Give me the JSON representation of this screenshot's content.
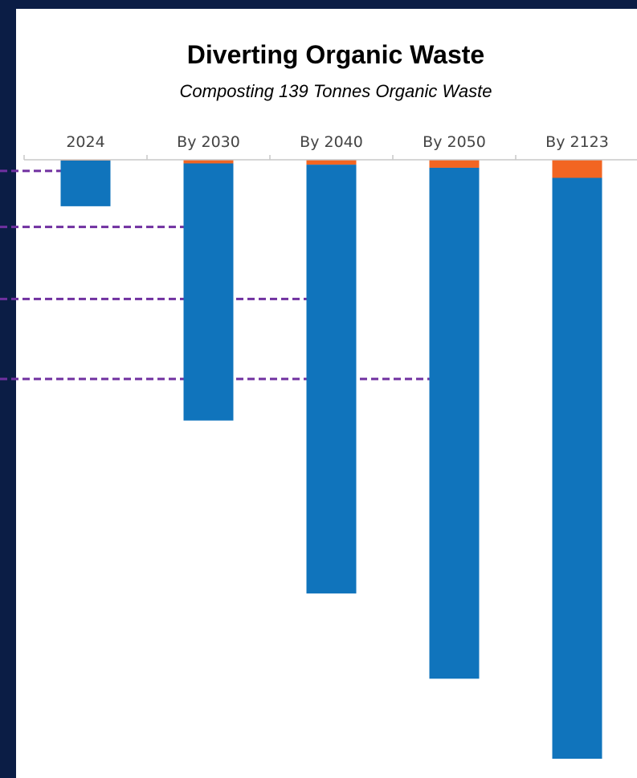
{
  "chart_data": {
    "type": "bar",
    "title": "Diverting Organic Waste",
    "subtitle": "Composting 139 Tonnes Organic Waste",
    "xlabel": "",
    "ylabel": "",
    "orientation": "downward",
    "categories": [
      "2024",
      "By 2030",
      "By 2040",
      "By 2050",
      "By 2123"
    ],
    "series": [
      {
        "values": [
          0.3,
          1.4,
          1.9,
          3.1,
          7.0
        ],
        "color": "#f26522"
      },
      {
        "values": [
          17.7,
          99.6,
          166.1,
          197.9,
          225.0
        ],
        "color": "#1074bc"
      }
    ],
    "ylim": [
      0,
      232
    ],
    "grid": false,
    "legend": "none",
    "reference_lines": {
      "color": "#7030a0",
      "style": "dashed",
      "values": [
        4.3,
        26.0,
        53.9,
        84.9
      ]
    },
    "colors": {
      "background": "#0b1d45",
      "panel": "#ffffff",
      "axis": "#c8c8c8"
    }
  }
}
